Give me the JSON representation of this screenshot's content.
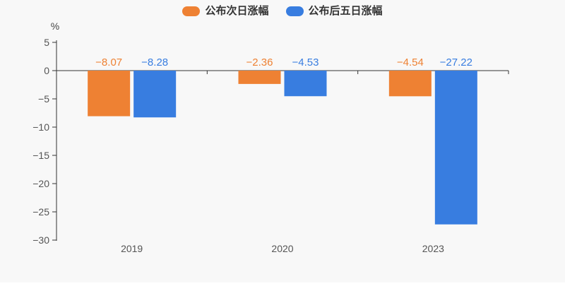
{
  "background_color": "#f8f8f8",
  "colors": {
    "next_day_series": "#ee8133",
    "five_day_series": "#387de0",
    "axis_line": "#333333",
    "tick_label": "#555555",
    "legend_text": "#333333"
  },
  "legend": {
    "items": [
      {
        "label": "公布次日涨幅",
        "color": "#ee8133"
      },
      {
        "label": "公布后五日涨幅",
        "color": "#387de0"
      }
    ]
  },
  "chart_data": {
    "type": "bar",
    "title": "",
    "ylabel": "%",
    "xlabel": "",
    "categories": [
      "2019",
      "2020",
      "2023"
    ],
    "series": [
      {
        "name": "公布次日涨幅",
        "color": "#ee8133",
        "values": [
          -8.07,
          -2.36,
          -4.54
        ]
      },
      {
        "name": "公布后五日涨幅",
        "color": "#387de0",
        "values": [
          -8.28,
          -4.53,
          -27.22
        ]
      }
    ],
    "data_labels": {
      "公布次日涨幅": [
        "−8.07",
        "−2.36",
        "−4.54"
      ],
      "公布后五日涨幅": [
        "−8.28",
        "−4.53",
        "−27.22"
      ]
    },
    "ylim": [
      -30,
      5
    ],
    "yticks": [
      5,
      0,
      -5,
      -10,
      -15,
      -20,
      -25,
      -30
    ],
    "ytick_labels": [
      "5",
      "0",
      "−5",
      "−10",
      "−15",
      "−20",
      "−25",
      "−30"
    ],
    "grid": "off",
    "legend_position": "top"
  }
}
